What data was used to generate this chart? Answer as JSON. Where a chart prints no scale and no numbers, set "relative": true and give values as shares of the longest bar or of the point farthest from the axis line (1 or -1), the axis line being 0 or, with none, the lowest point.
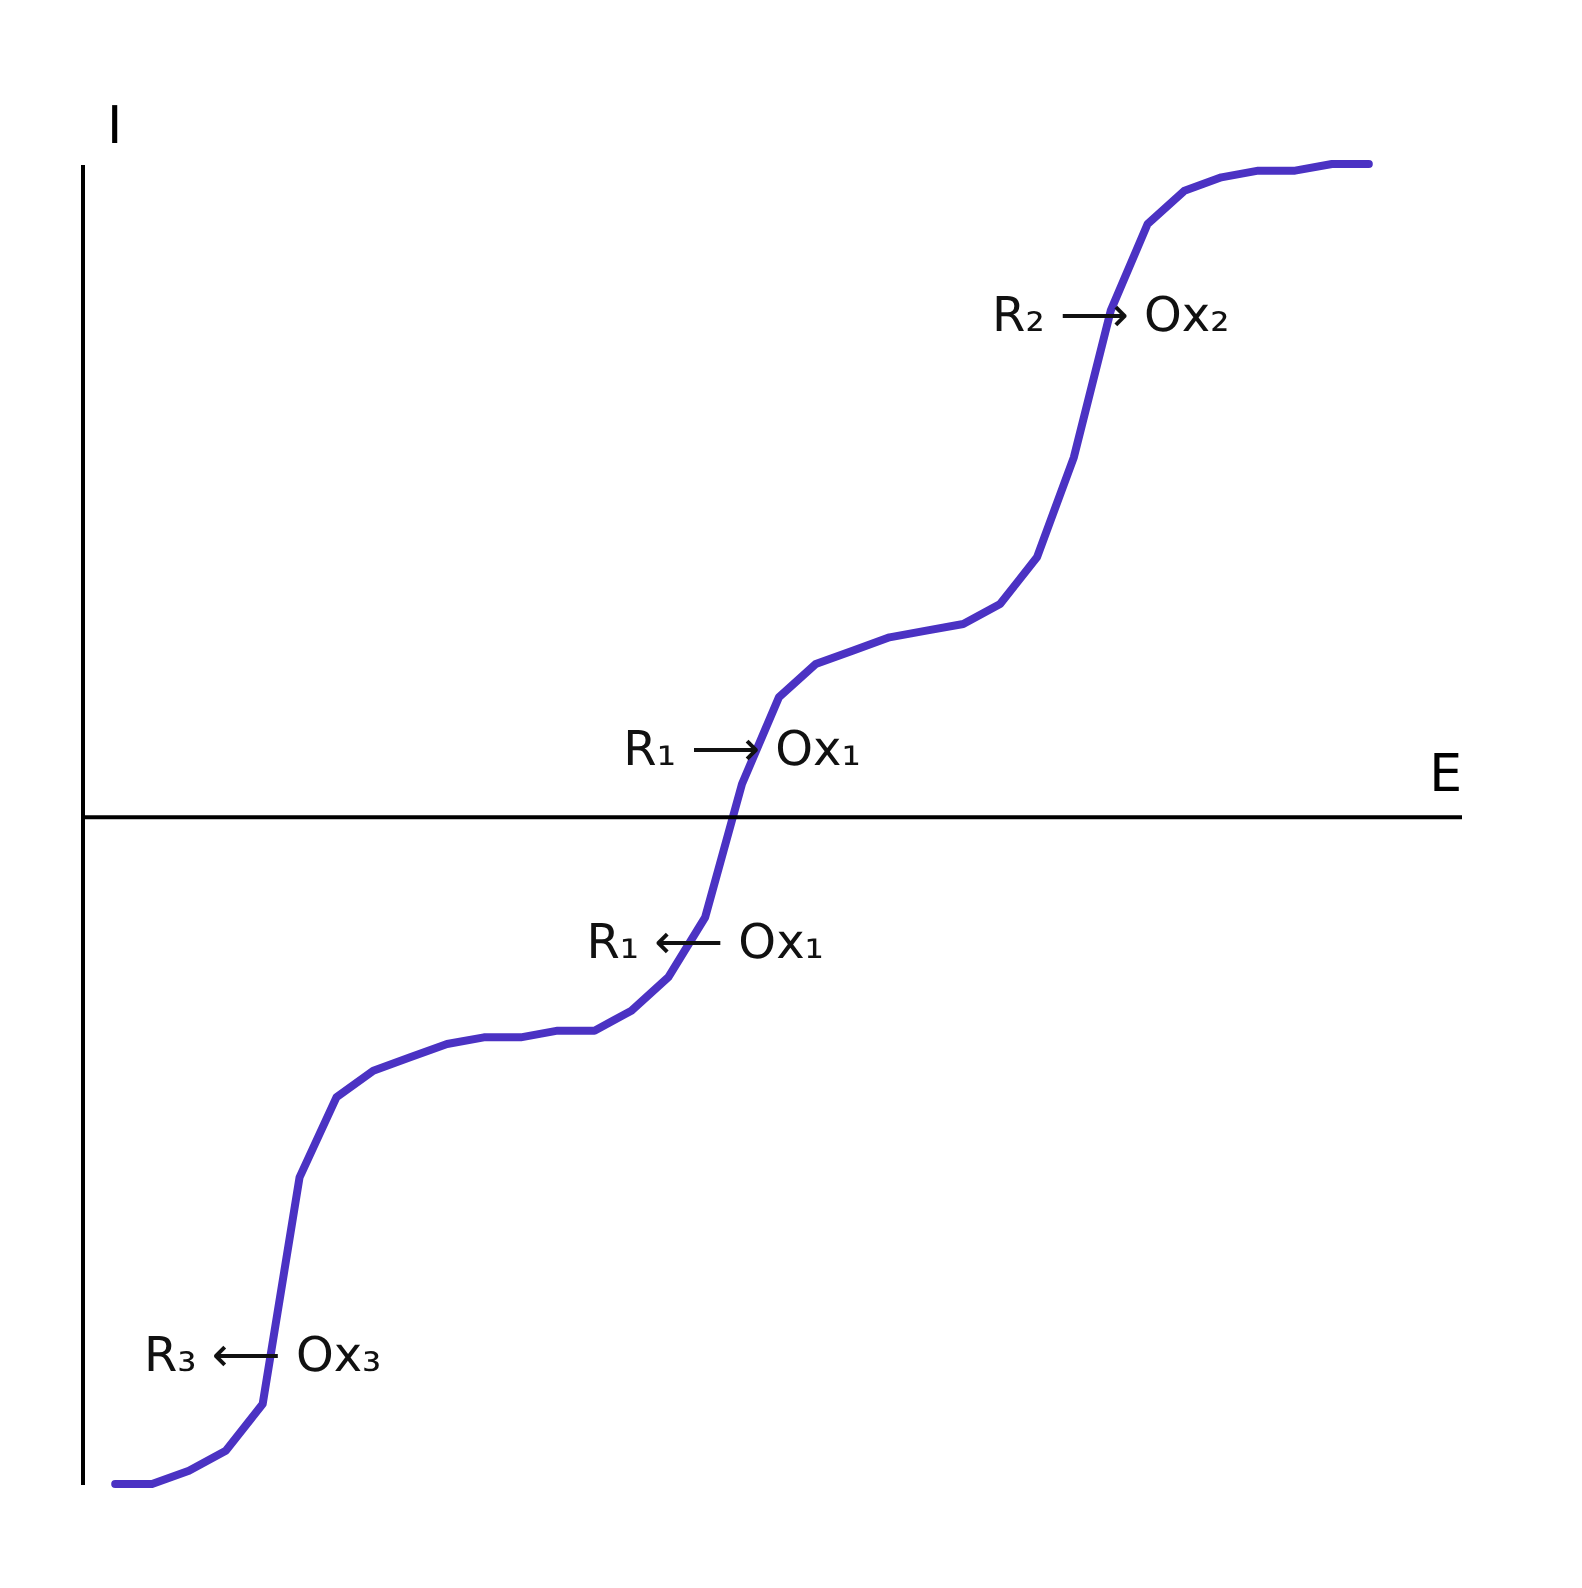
{
  "chart_data": {
    "type": "line",
    "relative": true,
    "xlabel": "E",
    "ylabel": "I",
    "grid": false,
    "tick_labels": false,
    "categories": [
      null,
      null,
      null,
      null,
      null,
      null,
      null,
      null,
      null,
      null,
      null,
      null,
      null,
      null,
      null,
      null,
      null,
      null,
      null,
      null,
      null,
      null,
      null,
      null,
      null,
      null,
      null,
      null,
      null,
      null,
      null,
      null,
      null,
      null,
      null
    ],
    "series": [
      {
        "color": "#4b32c3",
        "values": [
          -1.0,
          -1.0,
          -0.98,
          -0.95,
          -0.88,
          -0.54,
          -0.42,
          -0.38,
          -0.36,
          -0.34,
          -0.33,
          -0.33,
          -0.32,
          -0.32,
          -0.29,
          -0.24,
          -0.15,
          0.05,
          0.18,
          0.23,
          0.25,
          0.27,
          0.28,
          0.29,
          0.32,
          0.39,
          0.54,
          0.76,
          0.89,
          0.94,
          0.96,
          0.97,
          0.97,
          0.98,
          0.98
        ]
      }
    ],
    "annotations": [
      {
        "text": "R₂ ⟶ Ox₂",
        "y": 0.75
      },
      {
        "text": "R₁ ⟶ Ox₁",
        "y": 0.1
      },
      {
        "text": "R₁ ⟵ Ox₁",
        "y": -0.19
      },
      {
        "text": "R₃ ⟵ Ox₃",
        "y": -0.81
      }
    ]
  }
}
